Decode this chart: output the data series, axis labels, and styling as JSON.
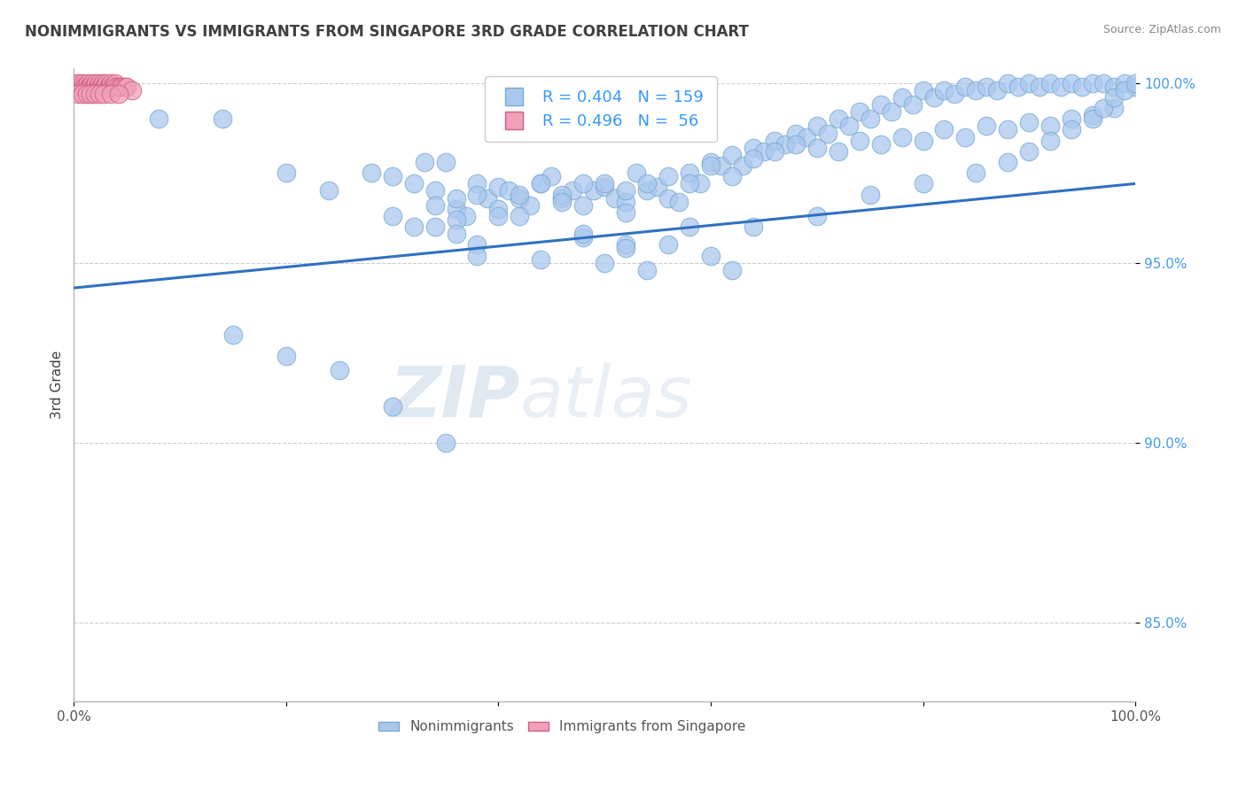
{
  "title": "NONIMMIGRANTS VS IMMIGRANTS FROM SINGAPORE 3RD GRADE CORRELATION CHART",
  "source": "Source: ZipAtlas.com",
  "ylabel": "3rd Grade",
  "blue_R": 0.404,
  "blue_N": 159,
  "pink_R": 0.496,
  "pink_N": 56,
  "blue_color": "#aac8ee",
  "pink_color": "#f0a0b8",
  "trend_color": "#3070c0",
  "grid_color": "#cccccc",
  "title_color": "#404040",
  "legend_text_color": "#3399ff",
  "xlim": [
    0.0,
    1.0
  ],
  "ylim": [
    0.828,
    1.004
  ],
  "yticks": [
    0.85,
    0.9,
    0.95,
    1.0
  ],
  "ytick_labels": [
    "85.0%",
    "90.0%",
    "95.0%",
    "100.0%"
  ],
  "trend_x0": 0.0,
  "trend_x1": 1.0,
  "trend_y0": 0.943,
  "trend_y1": 0.972,
  "blue_x": [
    0.08,
    0.14,
    0.2,
    0.24,
    0.28,
    0.3,
    0.32,
    0.33,
    0.34,
    0.35,
    0.36,
    0.37,
    0.38,
    0.39,
    0.4,
    0.41,
    0.42,
    0.43,
    0.44,
    0.45,
    0.46,
    0.47,
    0.48,
    0.49,
    0.5,
    0.51,
    0.52,
    0.53,
    0.54,
    0.55,
    0.56,
    0.57,
    0.58,
    0.59,
    0.6,
    0.61,
    0.62,
    0.63,
    0.64,
    0.65,
    0.66,
    0.67,
    0.68,
    0.69,
    0.7,
    0.71,
    0.72,
    0.73,
    0.74,
    0.75,
    0.76,
    0.77,
    0.78,
    0.79,
    0.8,
    0.81,
    0.82,
    0.83,
    0.84,
    0.85,
    0.86,
    0.87,
    0.88,
    0.89,
    0.9,
    0.91,
    0.92,
    0.93,
    0.94,
    0.95,
    0.96,
    0.97,
    0.98,
    0.99,
    1.0,
    0.3,
    0.32,
    0.34,
    0.36,
    0.38,
    0.4,
    0.42,
    0.44,
    0.46,
    0.48,
    0.5,
    0.52,
    0.54,
    0.56,
    0.58,
    0.6,
    0.62,
    0.64,
    0.66,
    0.68,
    0.7,
    0.72,
    0.74,
    0.76,
    0.78,
    0.8,
    0.82,
    0.84,
    0.86,
    0.88,
    0.9,
    0.92,
    0.94,
    0.96,
    0.98,
    0.75,
    0.8,
    0.85,
    0.88,
    0.9,
    0.92,
    0.94,
    0.96,
    0.97,
    0.98,
    0.99,
    1.0,
    0.34,
    0.4,
    0.46,
    0.52,
    0.58,
    0.64,
    0.7,
    0.15,
    0.2,
    0.25,
    0.3,
    0.35,
    0.36,
    0.42,
    0.48,
    0.52,
    0.38,
    0.44,
    0.5,
    0.54,
    0.48,
    0.52,
    0.38,
    0.36,
    0.56,
    0.6,
    0.62
  ],
  "blue_y": [
    0.99,
    0.99,
    0.975,
    0.97,
    0.975,
    0.974,
    0.972,
    0.978,
    0.97,
    0.978,
    0.965,
    0.963,
    0.972,
    0.968,
    0.971,
    0.97,
    0.968,
    0.966,
    0.972,
    0.974,
    0.968,
    0.97,
    0.966,
    0.97,
    0.971,
    0.968,
    0.967,
    0.975,
    0.97,
    0.971,
    0.968,
    0.967,
    0.975,
    0.972,
    0.978,
    0.977,
    0.98,
    0.977,
    0.982,
    0.981,
    0.984,
    0.983,
    0.986,
    0.985,
    0.988,
    0.986,
    0.99,
    0.988,
    0.992,
    0.99,
    0.994,
    0.992,
    0.996,
    0.994,
    0.998,
    0.996,
    0.998,
    0.997,
    0.999,
    0.998,
    0.999,
    0.998,
    1.0,
    0.999,
    1.0,
    0.999,
    1.0,
    0.999,
    1.0,
    0.999,
    1.0,
    1.0,
    0.999,
    1.0,
    0.999,
    0.963,
    0.96,
    0.966,
    0.962,
    0.969,
    0.965,
    0.969,
    0.972,
    0.969,
    0.972,
    0.972,
    0.97,
    0.972,
    0.974,
    0.972,
    0.977,
    0.974,
    0.979,
    0.981,
    0.983,
    0.982,
    0.981,
    0.984,
    0.983,
    0.985,
    0.984,
    0.987,
    0.985,
    0.988,
    0.987,
    0.989,
    0.988,
    0.99,
    0.991,
    0.993,
    0.969,
    0.972,
    0.975,
    0.978,
    0.981,
    0.984,
    0.987,
    0.99,
    0.993,
    0.996,
    0.998,
    1.0,
    0.96,
    0.963,
    0.967,
    0.964,
    0.96,
    0.96,
    0.963,
    0.93,
    0.924,
    0.92,
    0.91,
    0.9,
    0.968,
    0.963,
    0.957,
    0.955,
    0.955,
    0.951,
    0.95,
    0.948,
    0.958,
    0.954,
    0.952,
    0.958,
    0.955,
    0.952,
    0.948
  ],
  "pink_x": [
    0.001,
    0.002,
    0.003,
    0.004,
    0.005,
    0.006,
    0.007,
    0.008,
    0.009,
    0.01,
    0.011,
    0.012,
    0.013,
    0.014,
    0.015,
    0.016,
    0.017,
    0.018,
    0.019,
    0.02,
    0.021,
    0.022,
    0.023,
    0.024,
    0.025,
    0.026,
    0.027,
    0.028,
    0.029,
    0.03,
    0.031,
    0.032,
    0.033,
    0.034,
    0.035,
    0.036,
    0.037,
    0.038,
    0.039,
    0.04,
    0.042,
    0.044,
    0.046,
    0.048,
    0.05,
    0.055,
    0.004,
    0.008,
    0.012,
    0.016,
    0.02,
    0.024,
    0.028,
    0.035,
    0.042
  ],
  "pink_y": [
    0.999,
    0.999,
    1.0,
    0.999,
    0.999,
    1.0,
    0.999,
    0.999,
    1.0,
    0.999,
    0.999,
    0.999,
    1.0,
    0.999,
    0.999,
    0.999,
    1.0,
    0.999,
    0.999,
    0.999,
    1.0,
    0.999,
    0.999,
    1.0,
    0.999,
    0.999,
    1.0,
    0.999,
    0.999,
    0.999,
    1.0,
    0.999,
    0.999,
    0.999,
    1.0,
    0.999,
    0.999,
    0.999,
    1.0,
    0.999,
    0.999,
    0.999,
    0.999,
    0.999,
    0.999,
    0.998,
    0.997,
    0.997,
    0.997,
    0.997,
    0.997,
    0.997,
    0.997,
    0.997,
    0.997
  ],
  "figsize": [
    14.06,
    8.92
  ],
  "dpi": 100
}
